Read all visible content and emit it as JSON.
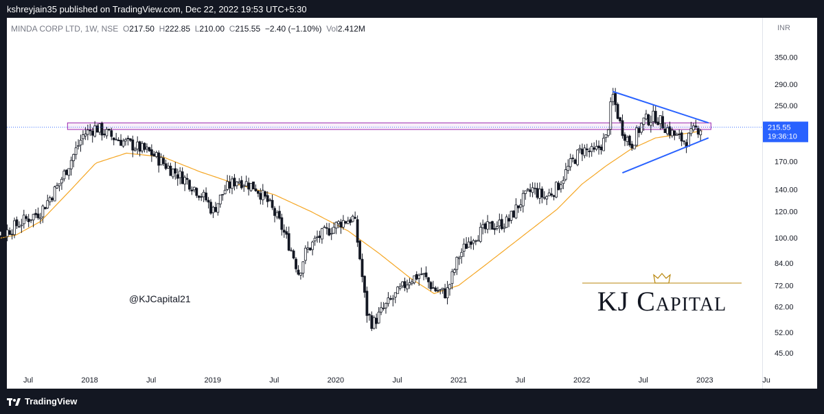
{
  "header": {
    "published": "kshreyjain35 published on TradingView.com, Dec 22, 2022 19:53 UTC+5:30"
  },
  "legend": {
    "symbol": "MINDA CORP LTD, 1W, NSE",
    "open_label": "O",
    "open": "217.50",
    "high_label": "H",
    "high": "222.85",
    "low_label": "L",
    "low": "210.00",
    "close_label": "C",
    "close": "215.55",
    "change": "−2.40 (−1.10%)",
    "vol_label": "Vol",
    "vol": "2.412M"
  },
  "footer": {
    "brand": "TradingView"
  },
  "watermark": {
    "handle": "@KJCapital21",
    "brand": "KJ Capital"
  },
  "chart_data": {
    "type": "candlestick",
    "currency": "INR",
    "price_ticks": [
      45,
      52,
      62,
      72,
      84,
      100,
      120,
      140,
      170,
      250,
      290,
      350
    ],
    "price_tick_labels": [
      "45.00",
      "52.00",
      "62.00",
      "72.00",
      "84.00",
      "100.00",
      "120.00",
      "140.00",
      "170.00",
      "250.00",
      "290.00",
      "350.00"
    ],
    "log_scale": true,
    "y_range": [
      40,
      420
    ],
    "x_labels": [
      "Jul",
      "2018",
      "Jul",
      "2019",
      "Jul",
      "2020",
      "Jul",
      "2021",
      "Jul",
      "2022",
      "Jul",
      "2023",
      "Ju"
    ],
    "x_label_decimal": [
      2017.5,
      2018.0,
      2018.5,
      2019.0,
      2019.5,
      2020.0,
      2020.5,
      2021.0,
      2021.5,
      2022.0,
      2022.5,
      2023.0,
      2023.5
    ],
    "last_price": {
      "value": 215.55,
      "label": "215.55",
      "countdown": "19:36:10"
    },
    "price_keypoints": [
      [
        2017.1,
        112
      ],
      [
        2017.3,
        103
      ],
      [
        2017.45,
        112
      ],
      [
        2017.6,
        120
      ],
      [
        2017.75,
        145
      ],
      [
        2017.85,
        172
      ],
      [
        2017.95,
        205
      ],
      [
        2018.05,
        215
      ],
      [
        2018.2,
        200
      ],
      [
        2018.35,
        190
      ],
      [
        2018.5,
        180
      ],
      [
        2018.65,
        162
      ],
      [
        2018.8,
        148
      ],
      [
        2018.95,
        130
      ],
      [
        2019.0,
        120
      ],
      [
        2019.1,
        140
      ],
      [
        2019.2,
        150
      ],
      [
        2019.35,
        142
      ],
      [
        2019.45,
        128
      ],
      [
        2019.55,
        110
      ],
      [
        2019.65,
        90
      ],
      [
        2019.7,
        78
      ],
      [
        2019.75,
        90
      ],
      [
        2019.85,
        100
      ],
      [
        2019.95,
        106
      ],
      [
        2020.05,
        112
      ],
      [
        2020.15,
        115
      ],
      [
        2020.2,
        85
      ],
      [
        2020.25,
        60
      ],
      [
        2020.3,
        55
      ],
      [
        2020.4,
        62
      ],
      [
        2020.5,
        68
      ],
      [
        2020.6,
        75
      ],
      [
        2020.7,
        78
      ],
      [
        2020.8,
        70
      ],
      [
        2020.9,
        68
      ],
      [
        2021.0,
        88
      ],
      [
        2021.1,
        100
      ],
      [
        2021.25,
        108
      ],
      [
        2021.4,
        112
      ],
      [
        2021.5,
        128
      ],
      [
        2021.6,
        140
      ],
      [
        2021.7,
        132
      ],
      [
        2021.8,
        142
      ],
      [
        2021.9,
        165
      ],
      [
        2022.0,
        185
      ],
      [
        2022.1,
        180
      ],
      [
        2022.2,
        200
      ],
      [
        2022.25,
        270
      ],
      [
        2022.32,
        215
      ],
      [
        2022.4,
        190
      ],
      [
        2022.5,
        225
      ],
      [
        2022.6,
        232
      ],
      [
        2022.7,
        212
      ],
      [
        2022.78,
        200
      ],
      [
        2022.85,
        196
      ],
      [
        2022.92,
        212
      ],
      [
        2022.98,
        215.55
      ]
    ],
    "moving_average_keypoints": [
      [
        2017.1,
        97
      ],
      [
        2017.4,
        102
      ],
      [
        2017.6,
        112
      ],
      [
        2017.85,
        140
      ],
      [
        2018.05,
        168
      ],
      [
        2018.3,
        180
      ],
      [
        2018.6,
        175
      ],
      [
        2018.9,
        158
      ],
      [
        2019.2,
        145
      ],
      [
        2019.5,
        135
      ],
      [
        2019.8,
        120
      ],
      [
        2020.1,
        105
      ],
      [
        2020.35,
        90
      ],
      [
        2020.6,
        76
      ],
      [
        2020.8,
        68
      ],
      [
        2021.0,
        72
      ],
      [
        2021.2,
        82
      ],
      [
        2021.5,
        100
      ],
      [
        2021.8,
        122
      ],
      [
        2022.0,
        145
      ],
      [
        2022.2,
        165
      ],
      [
        2022.4,
        185
      ],
      [
        2022.6,
        200
      ],
      [
        2022.8,
        205
      ],
      [
        2022.98,
        210
      ]
    ],
    "resistance_zone": {
      "x_start": 2017.82,
      "x_end": 2023.05,
      "y_low": 212,
      "y_high": 222
    },
    "triangle_upper_line": {
      "x": [
        2022.25,
        2023.03
      ],
      "y": [
        276,
        222
      ]
    },
    "triangle_lower_line": {
      "x": [
        2022.33,
        2023.03
      ],
      "y": [
        157,
        200
      ]
    },
    "colors": {
      "up": "#131722",
      "down": "#131722",
      "moving_average": "#f5a623",
      "zone_stroke": "#9c27b0",
      "zone_fill": "#f3e5f5",
      "trendline": "#2962ff",
      "price_label": "#2962ff",
      "brand_gold": "#b8860b"
    }
  }
}
